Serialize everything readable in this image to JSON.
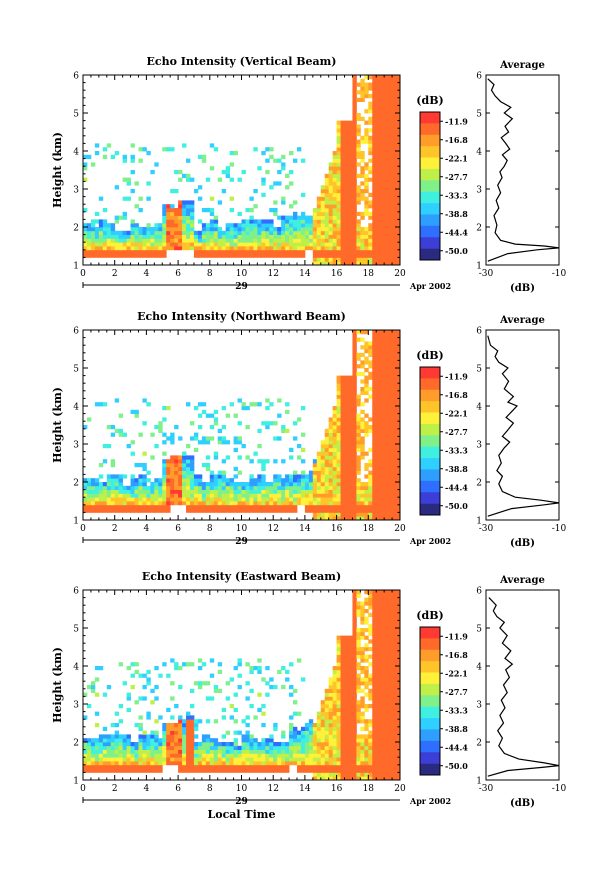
{
  "chart_data": [
    {
      "type": "heatmap",
      "title": "Echo Intensity (Vertical Beam)",
      "ylabel": "Height (km)",
      "x_ticks": [
        0,
        2,
        4,
        6,
        8,
        10,
        12,
        14,
        16,
        18,
        20
      ],
      "y_ticks": [
        1,
        2,
        3,
        4,
        5,
        6
      ],
      "xlim": [
        0,
        20
      ],
      "ylim": [
        1,
        6
      ],
      "date_label": "29",
      "month_label": "Apr 2002",
      "colorbar": {
        "label": "(dB)",
        "levels": [
          "-11.9",
          "-16.8",
          "-22.1",
          "-27.7",
          "-33.3",
          "-38.8",
          "-44.4",
          "-50.0"
        ]
      },
      "profile": {
        "title": "Average",
        "xlabel": "(dB)",
        "x_ticks": [
          -30,
          -10
        ],
        "xlim": [
          -30,
          -10
        ],
        "ylim": [
          1,
          6
        ],
        "points": [
          [
            -29.5,
            1.1
          ],
          [
            -24,
            1.3
          ],
          [
            -16,
            1.4
          ],
          [
            -10,
            1.45
          ],
          [
            -14,
            1.5
          ],
          [
            -22,
            1.55
          ],
          [
            -26,
            1.65
          ],
          [
            -27.5,
            1.85
          ],
          [
            -27,
            2.05
          ],
          [
            -27.8,
            2.3
          ],
          [
            -26.5,
            2.5
          ],
          [
            -27.2,
            2.7
          ],
          [
            -26,
            2.9
          ],
          [
            -26.8,
            3.1
          ],
          [
            -25.6,
            3.3
          ],
          [
            -26.2,
            3.45
          ],
          [
            -25,
            3.6
          ],
          [
            -24.2,
            3.75
          ],
          [
            -25.5,
            3.9
          ],
          [
            -23.5,
            4.05
          ],
          [
            -24.6,
            4.2
          ],
          [
            -25.8,
            4.35
          ],
          [
            -23.8,
            4.5
          ],
          [
            -24.8,
            4.65
          ],
          [
            -22.8,
            4.85
          ],
          [
            -25,
            5.0
          ],
          [
            -23.2,
            5.15
          ],
          [
            -26,
            5.3
          ],
          [
            -27.5,
            5.45
          ],
          [
            -28.5,
            5.6
          ],
          [
            -27.8,
            5.75
          ],
          [
            -29.5,
            5.9
          ]
        ]
      }
    },
    {
      "type": "heatmap",
      "title": "Echo Intensity (Northward Beam)",
      "ylabel": "Height (km)",
      "x_ticks": [
        0,
        2,
        4,
        6,
        8,
        10,
        12,
        14,
        16,
        18,
        20
      ],
      "y_ticks": [
        1,
        2,
        3,
        4,
        5,
        6
      ],
      "xlim": [
        0,
        20
      ],
      "ylim": [
        1,
        6
      ],
      "date_label": "29",
      "month_label": "Apr 2002",
      "colorbar": {
        "label": "(dB)",
        "levels": [
          "-11.9",
          "-16.8",
          "-22.1",
          "-27.7",
          "-33.3",
          "-38.8",
          "-44.4",
          "-50.0"
        ]
      },
      "profile": {
        "title": "Average",
        "xlabel": "(dB)",
        "x_ticks": [
          -30,
          -10
        ],
        "xlim": [
          -30,
          -10
        ],
        "ylim": [
          1,
          6
        ],
        "points": [
          [
            -29.5,
            1.1
          ],
          [
            -23,
            1.3
          ],
          [
            -14,
            1.4
          ],
          [
            -10,
            1.45
          ],
          [
            -15,
            1.52
          ],
          [
            -22,
            1.6
          ],
          [
            -25.5,
            1.75
          ],
          [
            -26.5,
            1.95
          ],
          [
            -25.5,
            2.15
          ],
          [
            -27,
            2.3
          ],
          [
            -25.8,
            2.5
          ],
          [
            -26.5,
            2.7
          ],
          [
            -25,
            2.9
          ],
          [
            -23.5,
            3.05
          ],
          [
            -25.5,
            3.2
          ],
          [
            -24.2,
            3.35
          ],
          [
            -22.5,
            3.55
          ],
          [
            -24.5,
            3.7
          ],
          [
            -23,
            3.85
          ],
          [
            -21.5,
            4.0
          ],
          [
            -24,
            4.1
          ],
          [
            -22.5,
            4.25
          ],
          [
            -25,
            4.45
          ],
          [
            -23.8,
            4.65
          ],
          [
            -25.5,
            4.85
          ],
          [
            -24,
            5.0
          ],
          [
            -26.5,
            5.15
          ],
          [
            -27.5,
            5.3
          ],
          [
            -26.8,
            5.45
          ],
          [
            -28.8,
            5.6
          ],
          [
            -29.5,
            5.85
          ]
        ]
      }
    },
    {
      "type": "heatmap",
      "title": "Echo Intensity (Eastward Beam)",
      "ylabel": "Height (km)",
      "xlabel": "Local Time",
      "x_ticks": [
        0,
        2,
        4,
        6,
        8,
        10,
        12,
        14,
        16,
        18,
        20
      ],
      "y_ticks": [
        1,
        2,
        3,
        4,
        5,
        6
      ],
      "xlim": [
        0,
        20
      ],
      "ylim": [
        1,
        6
      ],
      "date_label": "29",
      "month_label": "Apr 2002",
      "colorbar": {
        "label": "(dB)",
        "levels": [
          "-11.9",
          "-16.8",
          "-22.1",
          "-27.7",
          "-33.3",
          "-38.8",
          "-44.4",
          "-50.0"
        ]
      },
      "profile": {
        "title": "Average",
        "xlabel": "(dB)",
        "x_ticks": [
          -30,
          -10
        ],
        "xlim": [
          -30,
          -10
        ],
        "ylim": [
          1,
          6
        ],
        "points": [
          [
            -29.5,
            1.1
          ],
          [
            -24,
            1.25
          ],
          [
            -15,
            1.33
          ],
          [
            -10,
            1.38
          ],
          [
            -14,
            1.45
          ],
          [
            -21,
            1.55
          ],
          [
            -25,
            1.7
          ],
          [
            -26.5,
            1.9
          ],
          [
            -25.5,
            2.1
          ],
          [
            -26.8,
            2.3
          ],
          [
            -25.2,
            2.5
          ],
          [
            -26.2,
            2.7
          ],
          [
            -24.8,
            2.9
          ],
          [
            -25.8,
            3.1
          ],
          [
            -24.2,
            3.3
          ],
          [
            -25.2,
            3.5
          ],
          [
            -23.6,
            3.7
          ],
          [
            -24.6,
            3.9
          ],
          [
            -22.8,
            4.05
          ],
          [
            -24.8,
            4.2
          ],
          [
            -23.2,
            4.4
          ],
          [
            -25.5,
            4.6
          ],
          [
            -24.2,
            4.8
          ],
          [
            -26.2,
            5.0
          ],
          [
            -25,
            5.15
          ],
          [
            -27,
            5.3
          ],
          [
            -28,
            5.45
          ],
          [
            -27.2,
            5.6
          ],
          [
            -29.2,
            5.8
          ]
        ]
      }
    }
  ],
  "colors": {
    "scale": [
      "#ff3a33",
      "#ff6a2a",
      "#ff9c2a",
      "#ffc42a",
      "#fff03a",
      "#bff04a",
      "#7ff08a",
      "#3ff0e0",
      "#2fcfff",
      "#2f9fff",
      "#2f6fff",
      "#3b3fd8",
      "#2a2a80"
    ]
  }
}
